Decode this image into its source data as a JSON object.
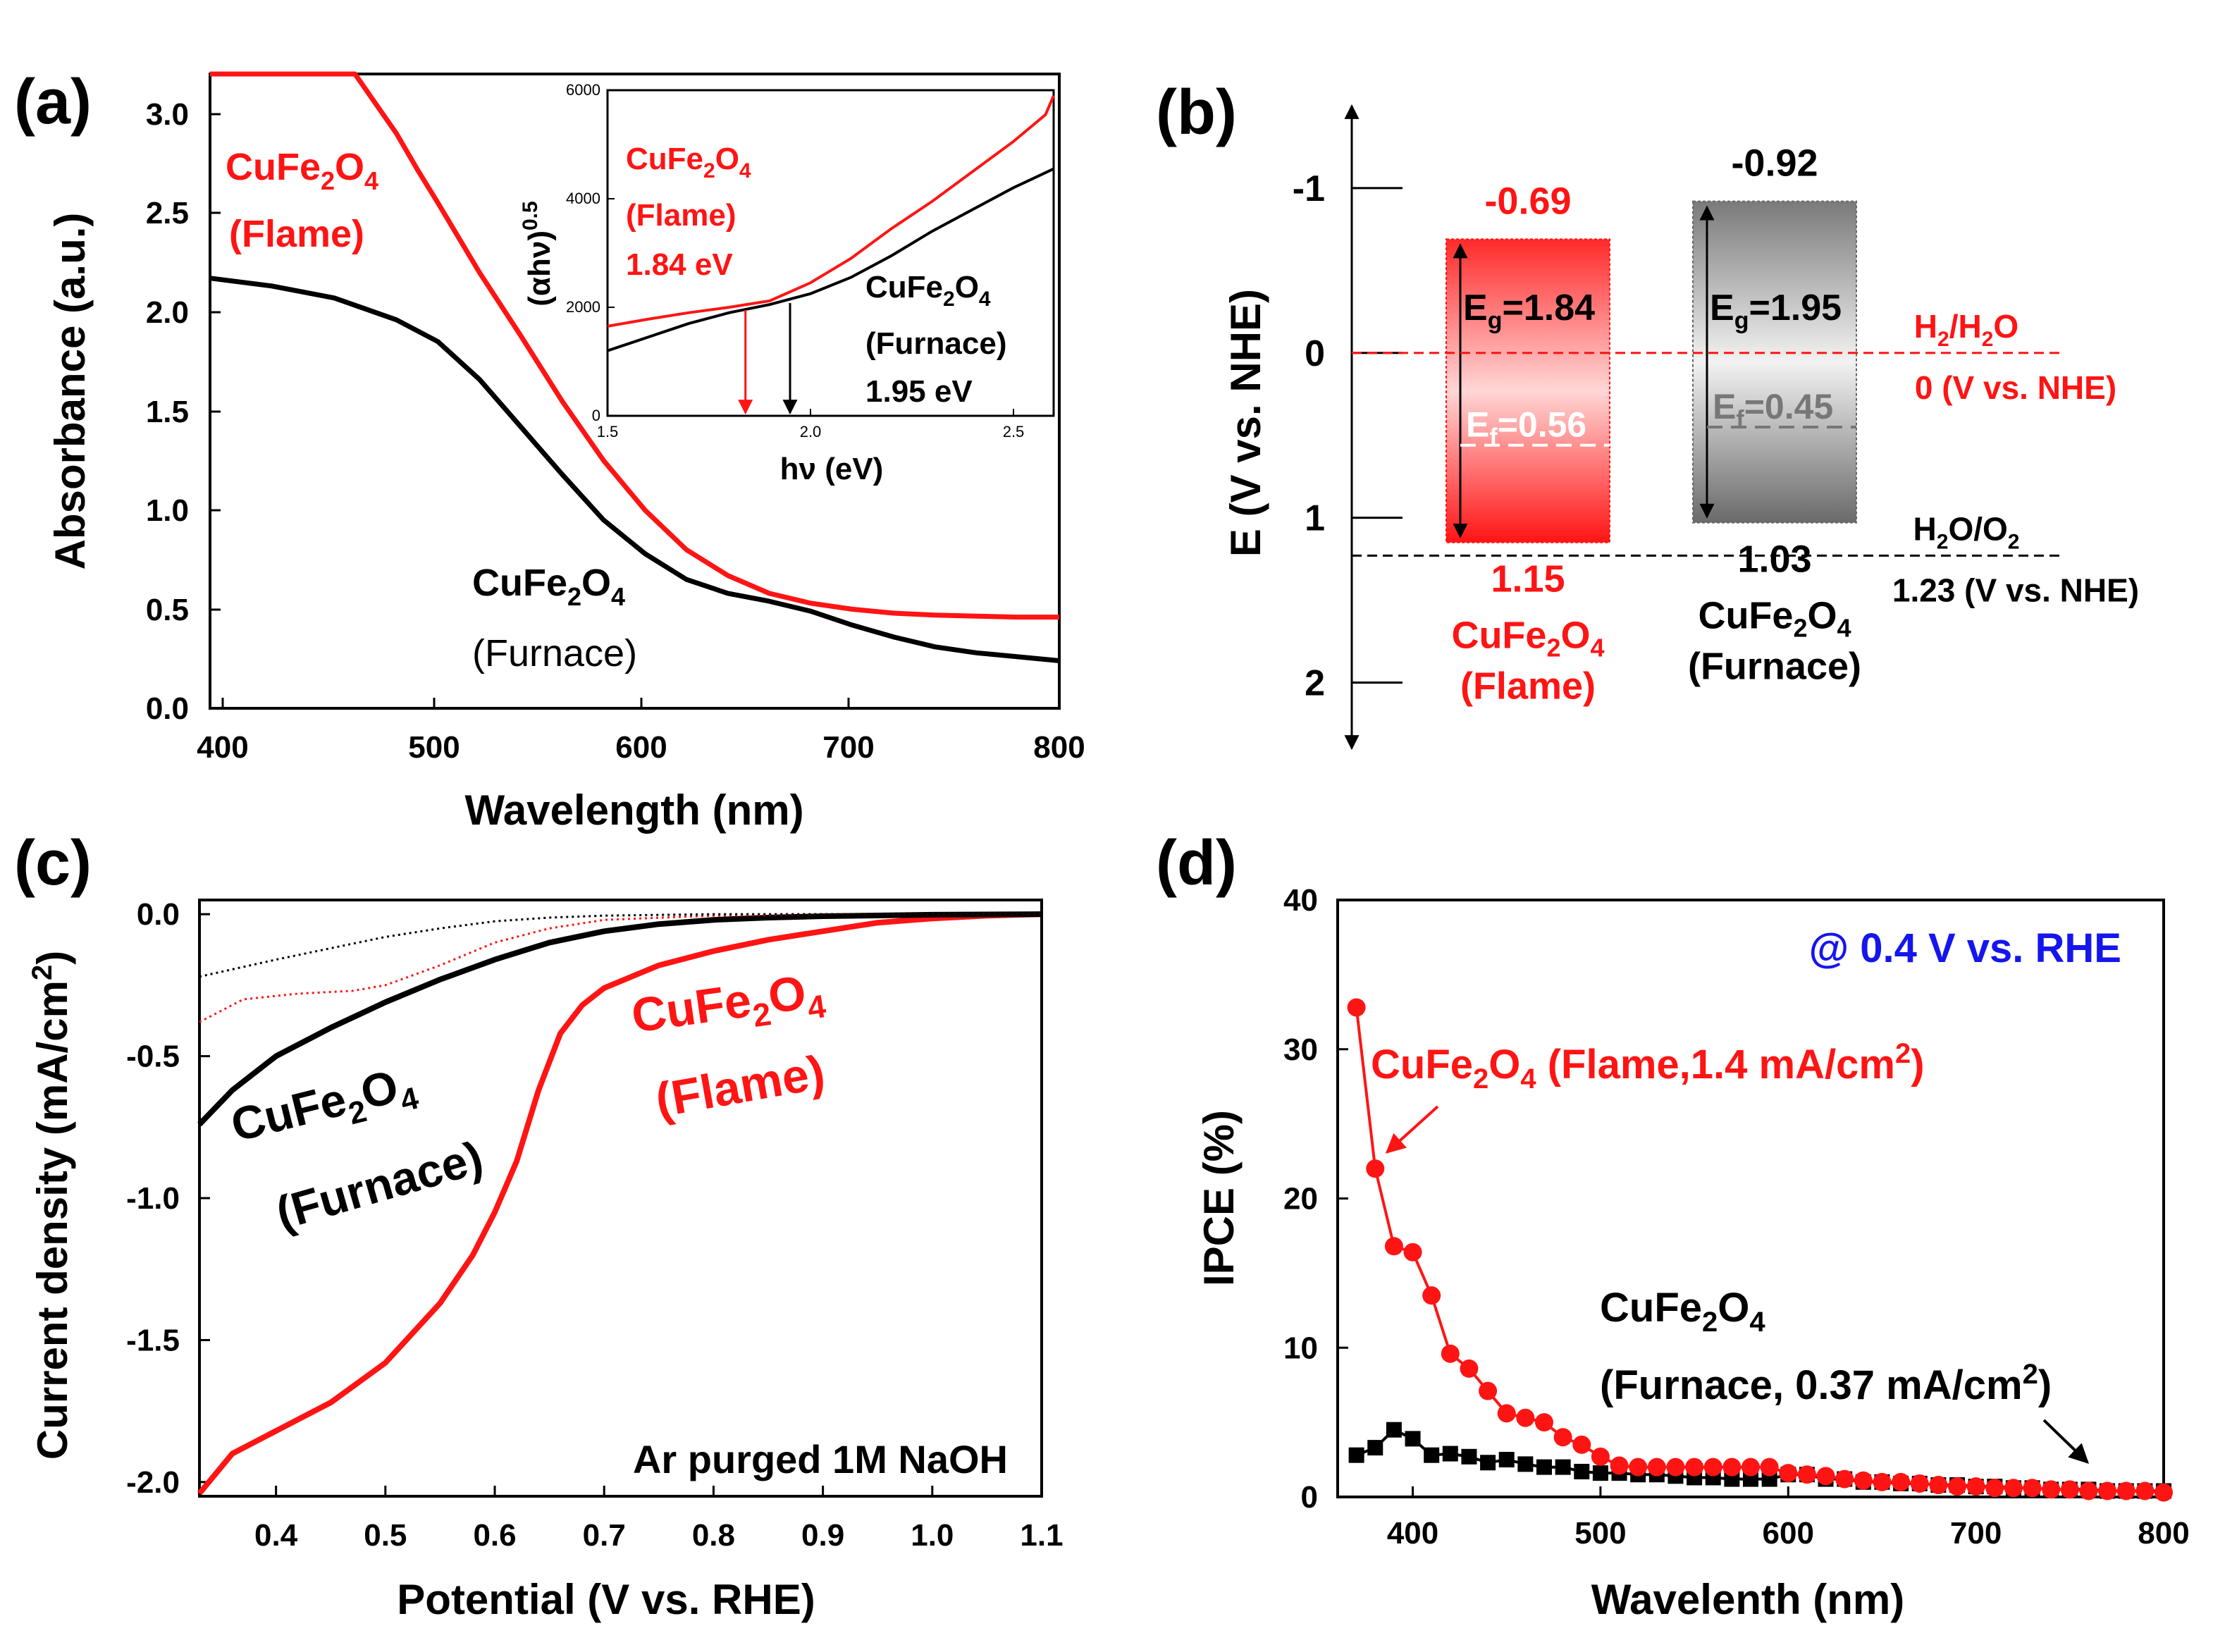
{
  "figure": {
    "colors": {
      "flame": "#ff1414",
      "furnace": "#000000",
      "ipce_note": "#1515ee",
      "gray": "#777777"
    }
  },
  "chart_data": [
    {
      "id": "a",
      "type": "line",
      "panel_label": "(a)",
      "xlabel": "Wavelength (nm)",
      "ylabel": "Absorbance (a.u.)",
      "xlim": [
        390,
        800
      ],
      "ylim": [
        0,
        3.2
      ],
      "x_ticks": [
        "400",
        "500",
        "600",
        "700",
        "800"
      ],
      "y_ticks": [
        "0.0",
        "0.5",
        "1.0",
        "1.5",
        "2.0",
        "2.5",
        "3.0"
      ],
      "series": [
        {
          "name": "CuFe2O4 (Flame)",
          "color": "#ff1414",
          "x": [
            390,
            420,
            440,
            460,
            470,
            480,
            490,
            500,
            520,
            540,
            560,
            580,
            600,
            620,
            640,
            660,
            680,
            700,
            720,
            740,
            760,
            780,
            800
          ],
          "y": [
            3.2,
            3.2,
            3.2,
            3.2,
            3.05,
            2.9,
            2.72,
            2.55,
            2.2,
            1.88,
            1.55,
            1.25,
            1.0,
            0.8,
            0.67,
            0.58,
            0.53,
            0.5,
            0.48,
            0.47,
            0.465,
            0.46,
            0.46
          ]
        },
        {
          "name": "CuFe2O4 (Furnace)",
          "color": "#000000",
          "x": [
            390,
            420,
            450,
            480,
            500,
            520,
            540,
            560,
            580,
            600,
            620,
            640,
            660,
            680,
            700,
            720,
            740,
            760,
            780,
            800
          ],
          "y": [
            2.17,
            2.13,
            2.07,
            1.96,
            1.85,
            1.66,
            1.42,
            1.18,
            0.95,
            0.78,
            0.65,
            0.58,
            0.54,
            0.49,
            0.42,
            0.36,
            0.31,
            0.28,
            0.26,
            0.24
          ]
        }
      ],
      "labels": {
        "flame": {
          "formula": [
            "CuFe",
            "2",
            "O",
            "4"
          ],
          "condition": "(Flame)"
        },
        "furnace": {
          "formula": [
            "CuFe",
            "2",
            "O",
            "4"
          ],
          "condition": "(Furnace)"
        }
      },
      "inset": {
        "xlabel": "hν (eV)",
        "ylabel": [
          "(αhν)",
          "0.5"
        ],
        "xlim": [
          1.5,
          2.6
        ],
        "ylim": [
          0,
          6000
        ],
        "x_ticks": [
          "1.5",
          "2.0",
          "2.5"
        ],
        "y_ticks": [
          "0",
          "2000",
          "4000",
          "6000"
        ],
        "series": [
          {
            "name": "Flame",
            "color": "#ff1414",
            "x": [
              1.5,
              1.6,
              1.7,
              1.8,
              1.9,
              2.0,
              2.1,
              2.2,
              2.3,
              2.4,
              2.5,
              2.58,
              2.6
            ],
            "y": [
              1650,
              1780,
              1900,
              2000,
              2120,
              2450,
              2900,
              3450,
              3950,
              4500,
              5050,
              5550,
              5900
            ]
          },
          {
            "name": "Furnace",
            "color": "#000000",
            "x": [
              1.5,
              1.6,
              1.7,
              1.8,
              1.9,
              2.0,
              2.1,
              2.2,
              2.3,
              2.4,
              2.5,
              2.6
            ],
            "y": [
              1200,
              1450,
              1700,
              1900,
              2050,
              2250,
              2550,
              2950,
              3400,
              3800,
              4200,
              4550
            ]
          }
        ],
        "flame_label": {
          "formula": [
            "CuFe",
            "2",
            "O",
            "4"
          ],
          "condition": "(Flame)",
          "value": "1.84 eV",
          "arrow_x": 1.84
        },
        "furnace_label": {
          "formula": [
            "CuFe",
            "2",
            "O",
            "4"
          ],
          "condition": "(Furnace)",
          "value": "1.95 eV",
          "arrow_x": 1.95
        }
      }
    },
    {
      "id": "b",
      "type": "band_diagram",
      "panel_label": "(b)",
      "ylabel": "E (V vs. NHE)",
      "ylim": [
        -1.5,
        2.4
      ],
      "y_ticks": [
        {
          "value": -1,
          "label": "-1"
        },
        {
          "value": 0,
          "label": "0"
        },
        {
          "value": 1,
          "label": "1"
        },
        {
          "value": 2,
          "label": "2"
        }
      ],
      "bands": [
        {
          "name": "Flame",
          "color": "#ff1414",
          "cb": -0.69,
          "vb": 1.15,
          "ef": 0.56,
          "cb_label": "-0.69",
          "vb_label": "1.15",
          "eg_label": "=1.84",
          "ef_label": "=0.56",
          "formula": [
            "CuFe",
            "2",
            "O",
            "4"
          ],
          "condition": "(Flame)"
        },
        {
          "name": "Furnace",
          "color": "#555555",
          "cb": -0.92,
          "vb": 1.03,
          "ef": 0.45,
          "cb_label": "-0.92",
          "vb_label": "1.03",
          "eg_label": "=1.95",
          "ef_label": "=0.45",
          "formula": [
            "CuFe",
            "2",
            "O",
            "4"
          ],
          "condition": "(Furnace)"
        }
      ],
      "levels": [
        {
          "name": "H2/H2O",
          "value": 0,
          "color": "#ff1414",
          "label": [
            "H",
            "2",
            "/H",
            "2",
            "O"
          ],
          "sub_label": "0 (V vs. NHE)"
        },
        {
          "name": "H2O/O2",
          "value": 1.23,
          "color": "#000000",
          "label": [
            "H",
            "2",
            "O/O",
            "2",
            ""
          ],
          "sub_label": "1.23 (V vs. NHE)"
        }
      ]
    },
    {
      "id": "c",
      "type": "line",
      "panel_label": "(c)",
      "xlabel": "Potential (V vs. RHE)",
      "ylabel": [
        "Current density (mA/cm",
        "2",
        ")"
      ],
      "xlim": [
        0.33,
        1.1
      ],
      "ylim": [
        -2.05,
        0.05
      ],
      "x_ticks": [
        "0.4",
        "0.5",
        "0.6",
        "0.7",
        "0.8",
        "0.9",
        "1.0",
        "1.1"
      ],
      "y_ticks": [
        "-2.0",
        "-1.5",
        "-1.0",
        "-0.5",
        "0.0"
      ],
      "series": [
        {
          "name": "Flame (light)",
          "color": "#ff1414",
          "style": "solid",
          "x": [
            0.33,
            0.36,
            0.4,
            0.45,
            0.5,
            0.55,
            0.58,
            0.6,
            0.62,
            0.64,
            0.66,
            0.68,
            0.7,
            0.75,
            0.8,
            0.85,
            0.9,
            0.95,
            1.0,
            1.05,
            1.1
          ],
          "y": [
            -2.04,
            -1.9,
            -1.82,
            -1.72,
            -1.58,
            -1.37,
            -1.2,
            -1.05,
            -0.87,
            -0.62,
            -0.42,
            -0.32,
            -0.26,
            -0.18,
            -0.13,
            -0.09,
            -0.06,
            -0.03,
            -0.015,
            -0.005,
            0.0
          ]
        },
        {
          "name": "Furnace (light)",
          "color": "#000000",
          "style": "solid",
          "x": [
            0.33,
            0.36,
            0.4,
            0.45,
            0.5,
            0.55,
            0.6,
            0.65,
            0.7,
            0.75,
            0.8,
            0.85,
            0.9,
            1.0,
            1.1
          ],
          "y": [
            -0.74,
            -0.62,
            -0.5,
            -0.4,
            -0.31,
            -0.23,
            -0.16,
            -0.1,
            -0.06,
            -0.035,
            -0.02,
            -0.012,
            -0.007,
            -0.002,
            0.0
          ]
        },
        {
          "name": "Flame (dark)",
          "color": "#ff1414",
          "style": "dotted",
          "x": [
            0.33,
            0.37,
            0.42,
            0.47,
            0.5,
            0.55,
            0.6,
            0.65,
            0.7,
            0.8,
            0.9,
            1.0,
            1.1
          ],
          "y": [
            -0.38,
            -0.3,
            -0.28,
            -0.27,
            -0.25,
            -0.18,
            -0.1,
            -0.05,
            -0.02,
            -0.005,
            0.0,
            0.0,
            0.0
          ]
        },
        {
          "name": "Furnace (dark)",
          "color": "#000000",
          "style": "dotted",
          "x": [
            0.33,
            0.4,
            0.45,
            0.5,
            0.55,
            0.6,
            0.65,
            0.7,
            0.8,
            0.9,
            1.0,
            1.1
          ],
          "y": [
            -0.22,
            -0.16,
            -0.12,
            -0.08,
            -0.05,
            -0.025,
            -0.012,
            -0.005,
            0.0,
            0.0,
            0.0,
            0.0
          ]
        }
      ],
      "labels": {
        "flame": {
          "formula": [
            "CuFe",
            "2",
            "O",
            "4"
          ],
          "condition": "(Flame)"
        },
        "furnace": {
          "formula": [
            "CuFe",
            "2",
            "O",
            "4"
          ],
          "condition": "(Furnace)"
        },
        "electrolyte": "Ar purged 1M NaOH"
      }
    },
    {
      "id": "d",
      "type": "scatter",
      "panel_label": "(d)",
      "xlabel": "Wavelenth (nm)",
      "ylabel": "IPCE (%)",
      "xlim": [
        360,
        800
      ],
      "ylim": [
        0,
        40
      ],
      "x_ticks": [
        "400",
        "500",
        "600",
        "700",
        "800"
      ],
      "y_ticks": [
        "0",
        "10",
        "20",
        "30",
        "40"
      ],
      "note": "@ 0.4 V vs. RHE",
      "series": [
        {
          "name": "Flame",
          "color": "#ff1414",
          "marker": "circle",
          "x": [
            370,
            380,
            390,
            400,
            410,
            420,
            430,
            440,
            450,
            460,
            470,
            480,
            490,
            500,
            510,
            520,
            530,
            540,
            550,
            560,
            570,
            580,
            590,
            600,
            610,
            620,
            630,
            640,
            650,
            660,
            670,
            680,
            690,
            700,
            710,
            720,
            730,
            740,
            750,
            760,
            770,
            780,
            790,
            800
          ],
          "y": [
            32.8,
            22.0,
            16.8,
            16.4,
            13.5,
            9.6,
            8.6,
            7.1,
            5.6,
            5.3,
            5.0,
            4.0,
            3.5,
            2.7,
            2.1,
            2.0,
            2.0,
            2.0,
            2.0,
            2.0,
            2.0,
            2.0,
            2.0,
            1.6,
            1.5,
            1.4,
            1.2,
            1.1,
            1.0,
            1.0,
            0.9,
            0.8,
            0.7,
            0.7,
            0.6,
            0.6,
            0.6,
            0.5,
            0.5,
            0.4,
            0.4,
            0.4,
            0.4,
            0.3
          ]
        },
        {
          "name": "Furnace",
          "color": "#000000",
          "marker": "square",
          "x": [
            370,
            380,
            390,
            400,
            410,
            420,
            430,
            440,
            450,
            460,
            470,
            480,
            490,
            500,
            510,
            520,
            530,
            540,
            550,
            560,
            570,
            580,
            590,
            600,
            610,
            620,
            630,
            640,
            650,
            660,
            670,
            680,
            690,
            700,
            710,
            720,
            730,
            740,
            750,
            760,
            770,
            780,
            790,
            800
          ],
          "y": [
            2.8,
            3.3,
            4.5,
            3.9,
            2.8,
            2.9,
            2.7,
            2.3,
            2.5,
            2.2,
            2.0,
            2.0,
            1.7,
            1.6,
            1.6,
            1.5,
            1.5,
            1.4,
            1.3,
            1.3,
            1.2,
            1.2,
            1.2,
            1.5,
            1.5,
            1.2,
            1.2,
            1.0,
            1.0,
            0.9,
            0.9,
            0.8,
            0.8,
            0.7,
            0.7,
            0.6,
            0.6,
            0.5,
            0.5,
            0.5,
            0.4,
            0.4,
            0.4,
            0.4
          ]
        }
      ],
      "labels": {
        "flame": {
          "formula": [
            "CuFe",
            "2",
            "O",
            "4"
          ],
          "details": [
            " (Flame,1.4 mA/cm",
            "2",
            ")"
          ]
        },
        "furnace": {
          "formula": [
            "CuFe",
            "2",
            "O",
            "4"
          ],
          "details": [
            "(Furnace, 0.37 mA/cm",
            "2",
            ")"
          ]
        }
      }
    }
  ]
}
